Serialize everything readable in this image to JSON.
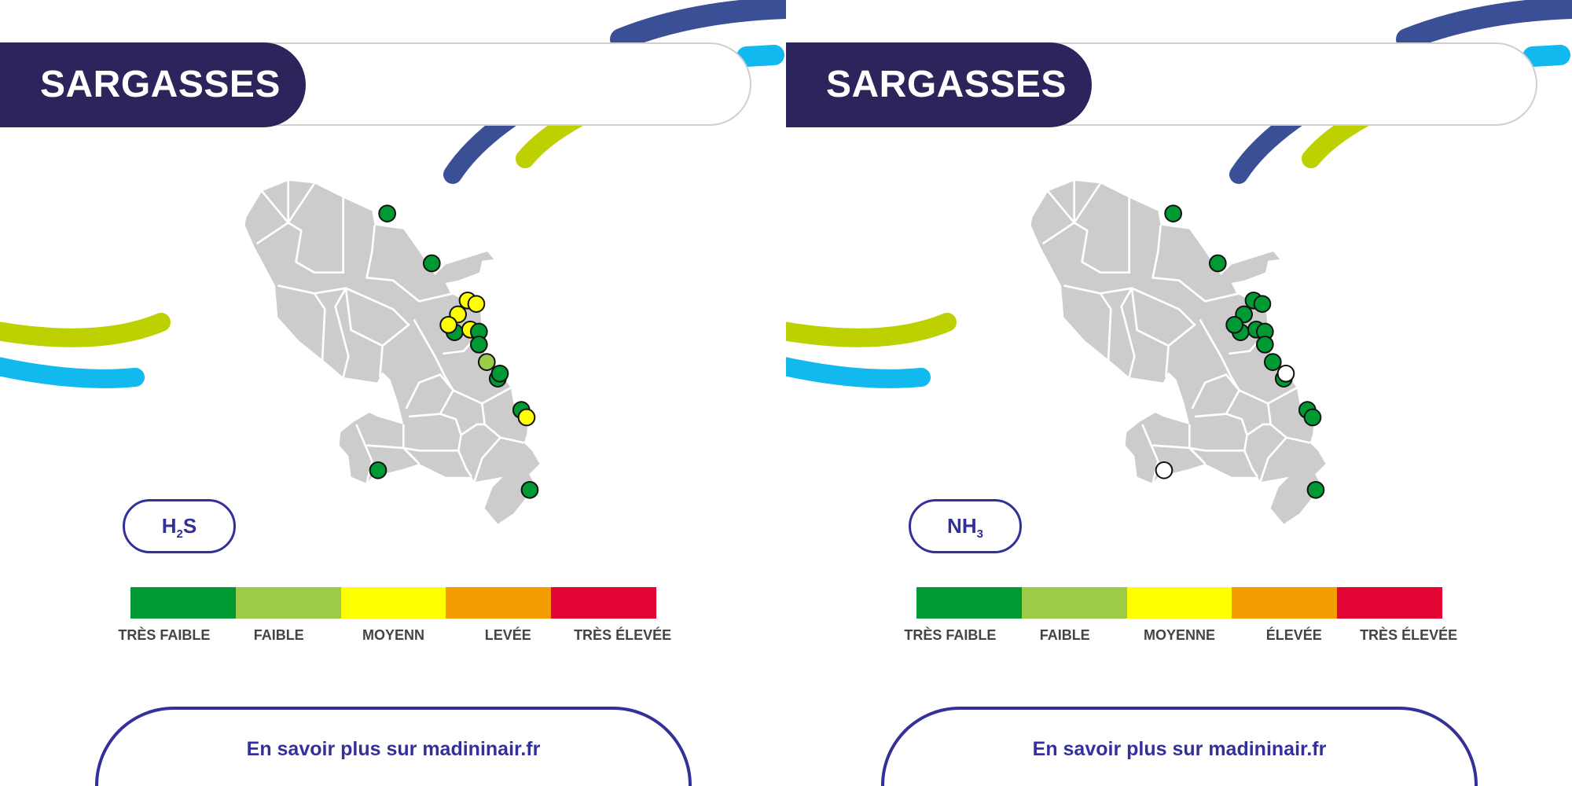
{
  "colors": {
    "navy": "#2b255c",
    "blue": "#3b4f97",
    "cyan": "#12b9ee",
    "lime": "#bdd000",
    "map": "#cccccc",
    "levels": {
      "tres_faible": "#009a35",
      "faible": "#9ccb48",
      "moyenne": "#ffff00",
      "elevee": "#f59c00",
      "tres_elevee": "#e30534",
      "none": "#ffffff"
    }
  },
  "panels": [
    {
      "title": "SARGASSES",
      "pollutant": {
        "base": "H",
        "sub": "2",
        "rest": "S"
      },
      "legend": [
        "TRÈS FAIBLE",
        "FAIBLE",
        "MOYENN",
        "LEVÉE",
        "TRÈS ÉLEVÉE"
      ],
      "stations": [
        "tres_faible",
        "tres_faible",
        "moyenne",
        "moyenne",
        "moyenne",
        "tres_faible",
        "moyenne",
        "moyenne",
        "tres_faible",
        "tres_faible",
        "faible",
        "tres_faible",
        "tres_faible",
        "tres_faible",
        "moyenne",
        "tres_faible",
        "tres_faible"
      ],
      "link": "En savoir plus sur madininair.fr"
    },
    {
      "title": "SARGASSES",
      "pollutant": {
        "base": "NH",
        "sub": "3",
        "rest": ""
      },
      "legend": [
        "TRÈS FAIBLE",
        "FAIBLE",
        "MOYENNE",
        "ÉLEVÉE",
        "TRÈS ÉLEVÉE"
      ],
      "stations": [
        "tres_faible",
        "tres_faible",
        "tres_faible",
        "tres_faible",
        "tres_faible",
        "tres_faible",
        "tres_faible",
        "tres_faible",
        "tres_faible",
        "tres_faible",
        "tres_faible",
        "tres_faible",
        "none",
        "tres_faible",
        "tres_faible",
        "none",
        "tres_faible"
      ],
      "link": "En savoir plus sur madininair.fr"
    }
  ]
}
